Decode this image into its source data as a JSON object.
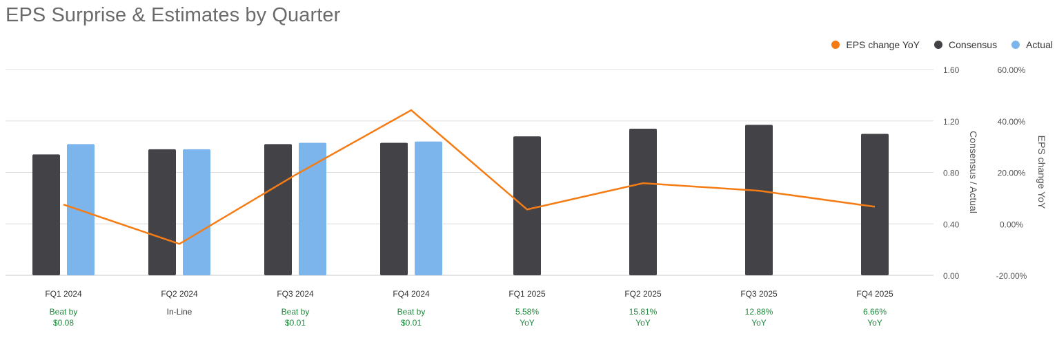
{
  "chart_data": {
    "type": "bar",
    "title": "EPS Surprise & Estimates by Quarter",
    "categories": [
      "FQ1 2024",
      "FQ2 2024",
      "FQ3 2024",
      "FQ4 2024",
      "FQ1 2025",
      "FQ2 2025",
      "FQ3 2025",
      "FQ4 2025"
    ],
    "series": [
      {
        "name": "Consensus",
        "kind": "bar",
        "axis": "left",
        "color": "#434347",
        "values": [
          0.94,
          0.98,
          1.02,
          1.03,
          1.08,
          1.14,
          1.17,
          1.1
        ]
      },
      {
        "name": "Actual",
        "kind": "bar",
        "axis": "left",
        "color": "#7cb5ec",
        "values": [
          1.02,
          0.98,
          1.03,
          1.04,
          null,
          null,
          null,
          null
        ]
      },
      {
        "name": "EPS change YoY",
        "kind": "line",
        "axis": "right",
        "color": "#f57c14",
        "values": [
          7.5,
          -7.8,
          19.0,
          44.2,
          5.58,
          15.81,
          12.88,
          6.66
        ]
      }
    ],
    "ylabel": "Consensus / Actual",
    "ylim": [
      0,
      1.6
    ],
    "yticks": [
      "0.00",
      "0.40",
      "0.80",
      "1.20",
      "1.60"
    ],
    "y2label": "EPS change YoY",
    "y2lim": [
      -20,
      60
    ],
    "y2ticks": [
      "-20.00%",
      "0.00%",
      "20.00%",
      "40.00%",
      "60.00%"
    ],
    "annotations": [
      {
        "line1": "Beat by",
        "line2": "$0.08",
        "color": "#1e8a3c"
      },
      {
        "line1": "In-Line",
        "line2": "",
        "color": "#333333"
      },
      {
        "line1": "Beat by",
        "line2": "$0.01",
        "color": "#1e8a3c"
      },
      {
        "line1": "Beat by",
        "line2": "$0.01",
        "color": "#1e8a3c"
      },
      {
        "line1": "5.58%",
        "line2": "YoY",
        "color": "#1e8a3c"
      },
      {
        "line1": "15.81%",
        "line2": "YoY",
        "color": "#1e8a3c"
      },
      {
        "line1": "12.88%",
        "line2": "YoY",
        "color": "#1e8a3c"
      },
      {
        "line1": "6.66%",
        "line2": "YoY",
        "color": "#1e8a3c"
      }
    ],
    "grid": true,
    "legend_position": "top-right"
  },
  "legend": [
    {
      "label": "EPS change YoY",
      "color": "#f57c14"
    },
    {
      "label": "Consensus",
      "color": "#434347"
    },
    {
      "label": "Actual",
      "color": "#7cb5ec"
    }
  ]
}
